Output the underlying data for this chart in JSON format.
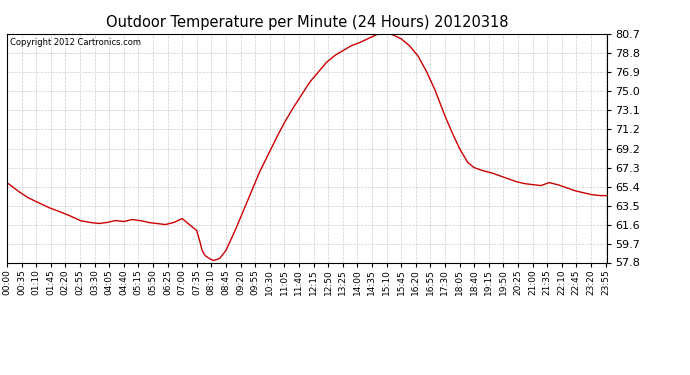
{
  "title": "Outdoor Temperature per Minute (24 Hours) 20120318",
  "copyright_text": "Copyright 2012 Cartronics.com",
  "line_color": "#cc0000",
  "bg_color": "#ffffff",
  "plot_bg_color": "#ffffff",
  "grid_color": "#c8c8c8",
  "yticks": [
    57.8,
    59.7,
    61.6,
    63.5,
    65.4,
    67.3,
    69.2,
    71.2,
    73.1,
    75.0,
    76.9,
    78.8,
    80.7
  ],
  "ymin": 57.8,
  "ymax": 80.7,
  "xmin": 0,
  "xmax": 1439,
  "xtick_positions": [
    0,
    35,
    70,
    105,
    140,
    175,
    210,
    245,
    280,
    315,
    350,
    385,
    420,
    455,
    490,
    525,
    560,
    595,
    630,
    665,
    700,
    735,
    770,
    805,
    840,
    875,
    910,
    945,
    980,
    1015,
    1050,
    1085,
    1120,
    1155,
    1190,
    1225,
    1260,
    1295,
    1330,
    1365,
    1400,
    1435
  ],
  "xtick_labels": [
    "00:00",
    "00:35",
    "01:10",
    "01:45",
    "02:20",
    "02:55",
    "03:30",
    "04:05",
    "04:40",
    "05:15",
    "05:50",
    "06:25",
    "07:00",
    "07:35",
    "08:10",
    "08:45",
    "09:20",
    "09:55",
    "10:30",
    "11:05",
    "11:40",
    "12:15",
    "12:50",
    "13:25",
    "14:00",
    "14:35",
    "15:10",
    "15:45",
    "16:20",
    "16:55",
    "17:30",
    "18:05",
    "18:40",
    "19:15",
    "19:50",
    "20:25",
    "21:00",
    "21:35",
    "22:10",
    "22:45",
    "23:20",
    "23:55"
  ],
  "kp_min": [
    0,
    25,
    50,
    75,
    100,
    120,
    150,
    175,
    200,
    220,
    240,
    260,
    280,
    300,
    320,
    340,
    360,
    380,
    400,
    420,
    440,
    455,
    462,
    468,
    475,
    485,
    495,
    510,
    525,
    545,
    565,
    585,
    605,
    625,
    645,
    665,
    685,
    705,
    725,
    745,
    765,
    785,
    805,
    825,
    845,
    865,
    885,
    905,
    925,
    945,
    965,
    985,
    1005,
    1025,
    1045,
    1065,
    1085,
    1105,
    1120,
    1140,
    1160,
    1180,
    1200,
    1220,
    1240,
    1260,
    1280,
    1300,
    1320,
    1340,
    1360,
    1380,
    1400,
    1420,
    1439
  ],
  "kp_temp": [
    65.8,
    65.0,
    64.3,
    63.8,
    63.3,
    63.0,
    62.5,
    62.0,
    61.8,
    61.7,
    61.8,
    62.0,
    61.9,
    62.1,
    62.0,
    61.8,
    61.7,
    61.6,
    61.8,
    62.2,
    61.5,
    61.0,
    60.0,
    59.0,
    58.5,
    58.2,
    58.0,
    58.2,
    59.0,
    60.8,
    62.8,
    64.8,
    66.8,
    68.5,
    70.2,
    71.8,
    73.2,
    74.5,
    75.8,
    76.8,
    77.8,
    78.5,
    79.0,
    79.5,
    79.8,
    80.2,
    80.6,
    80.8,
    80.6,
    80.2,
    79.5,
    78.5,
    77.0,
    75.2,
    73.0,
    71.0,
    69.2,
    67.8,
    67.3,
    67.0,
    66.8,
    66.5,
    66.2,
    65.9,
    65.7,
    65.6,
    65.5,
    65.8,
    65.6,
    65.3,
    65.0,
    64.8,
    64.6,
    64.5,
    64.5
  ]
}
